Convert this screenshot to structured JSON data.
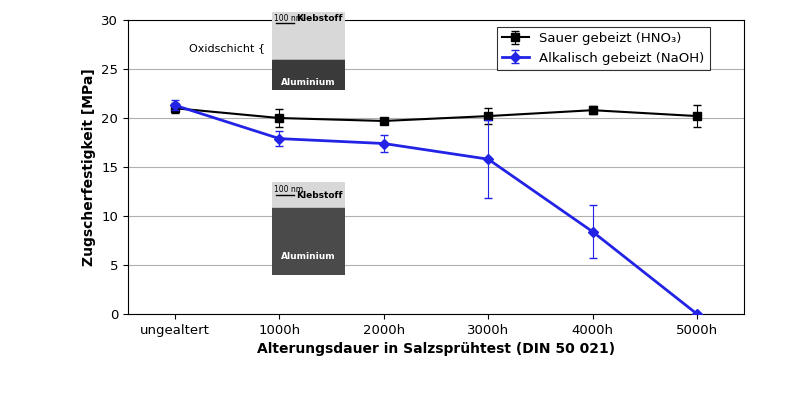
{
  "chart_data": {
    "type": "line",
    "categories": [
      "ungealtert",
      "1000h",
      "2000h",
      "3000h",
      "4000h",
      "5000h"
    ],
    "x_label": "Alterungsdauer in Salzsprühtest (DIN 50 021)",
    "y_label": "Zugscherfestigkeit [MPa]",
    "ylim": [
      0,
      30
    ],
    "yticks": [
      0,
      5,
      10,
      15,
      20,
      25,
      30
    ],
    "grid": true,
    "legend": "upper right",
    "series": [
      {
        "name": "Sauer gebeizt (HNO₃)",
        "color": "#000000",
        "marker": "square",
        "line_style": "solid",
        "values": [
          21.0,
          20.0,
          19.7,
          20.2,
          20.8,
          20.2
        ],
        "errors": [
          0.5,
          0.9,
          0.3,
          0.8,
          0.4,
          1.1
        ]
      },
      {
        "name": "Alkalisch gebeizt (NaOH)",
        "color": "#2323e6",
        "marker": "diamond",
        "line_style": "solid",
        "values": [
          21.3,
          17.9,
          17.4,
          15.8,
          8.4,
          0.0
        ],
        "errors": [
          0.5,
          0.8,
          0.9,
          4.0,
          2.7,
          0.0
        ]
      }
    ],
    "insets": [
      {
        "scale_bar": "100 nm",
        "top_label": "Klebstoff",
        "bottom_label": "Aluminium",
        "bracket_label": "Oxidschicht {"
      },
      {
        "scale_bar": "100 nm",
        "top_label": "Klebstoff",
        "bottom_label": "Aluminium"
      }
    ]
  }
}
